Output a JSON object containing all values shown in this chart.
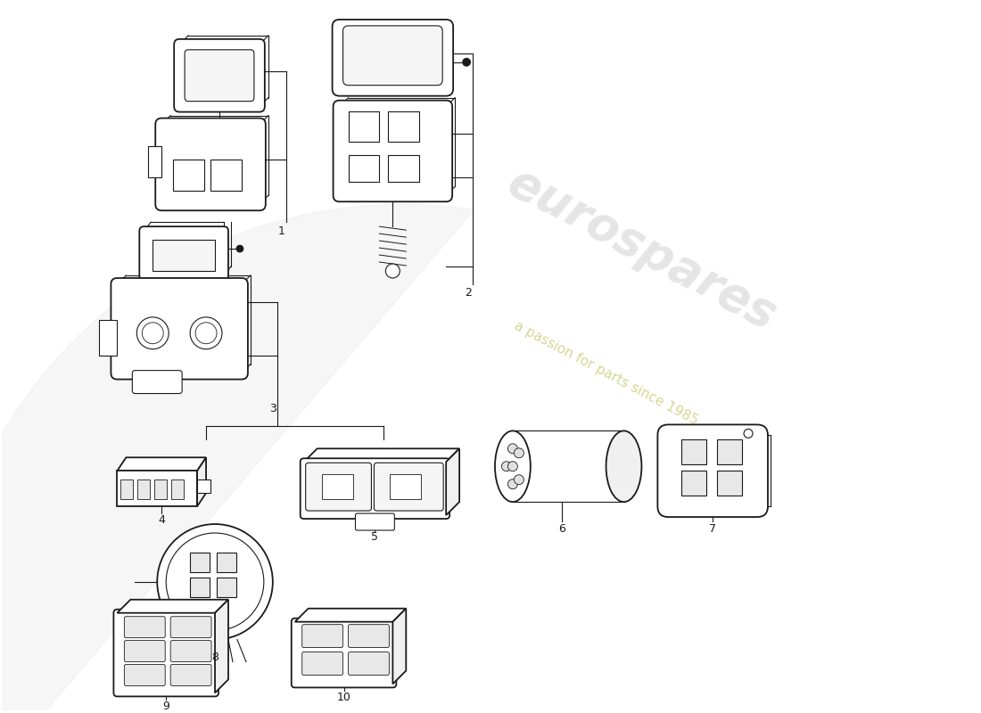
{
  "bg": "#ffffff",
  "lc": "#1a1a1a",
  "wm_color": "#d0d0d0",
  "wm_sub_color": "#cccc88",
  "fig_w": 11.0,
  "fig_h": 8.0,
  "dpi": 100,
  "xlim": [
    0,
    110
  ],
  "ylim": [
    0,
    80
  ]
}
